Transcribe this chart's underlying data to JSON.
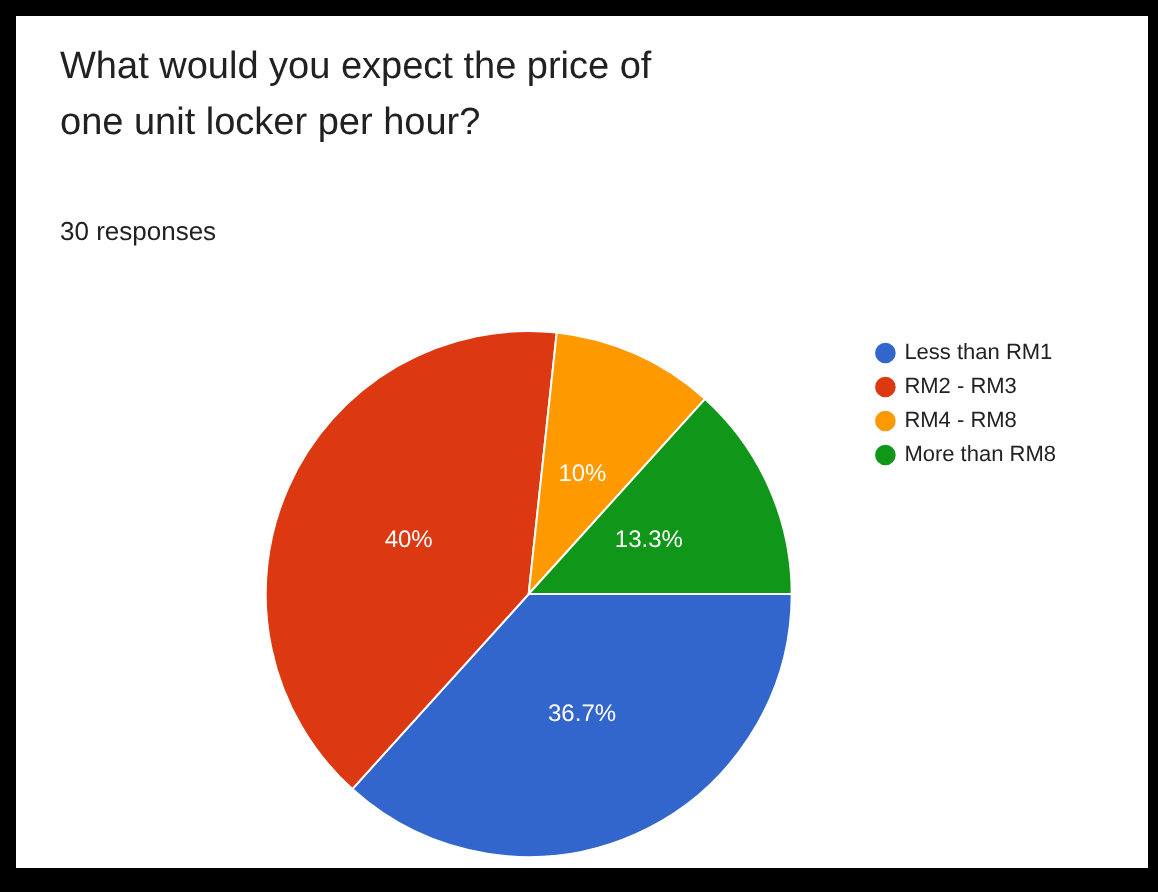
{
  "chart_data": {
    "type": "pie",
    "title": "What would you expect the price of one unit locker per hour?",
    "subtitle": "30 responses",
    "categories": [
      "Less than RM1",
      "RM2 - RM3",
      "RM4 - RM8",
      "More than RM8"
    ],
    "values": [
      36.7,
      40,
      10,
      13.3
    ],
    "colors": [
      "#3366cc",
      "#dc3912",
      "#ff9900",
      "#109618"
    ],
    "value_labels": [
      "36.7%",
      "40%",
      "10%",
      "13.3%"
    ],
    "legend": "right"
  }
}
